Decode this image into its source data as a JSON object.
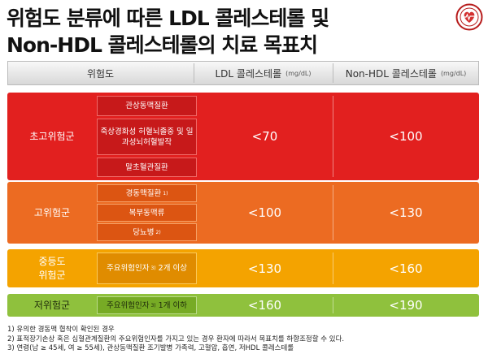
{
  "title_line1": "위험도 분류에 따른 LDL 콜레스테롤 및",
  "title_line2": "Non-HDL 콜레스테롤의 치료 목표치",
  "header": {
    "risk": "위험도",
    "ldl": "LDL 콜레스테롤",
    "ldl_unit": "(mg/dL)",
    "nonhdl": "Non-HDL 콜레스테롤",
    "nonhdl_unit": "(mg/dL)"
  },
  "groups": [
    {
      "category": "초고위험군",
      "ldl": "<70",
      "nonhdl": "<100",
      "conditions": [
        {
          "text": "관상동맥질환",
          "note": ""
        },
        {
          "text": "죽상경화성 허혈뇌졸중 및 일과성뇌허혈발작",
          "note": ""
        },
        {
          "text": "말초혈관질환",
          "note": ""
        }
      ]
    },
    {
      "category": "고위험군",
      "ldl": "<100",
      "nonhdl": "<130",
      "conditions": [
        {
          "text": "경동맥질환",
          "note": "1)"
        },
        {
          "text": "복부동맥류",
          "note": ""
        },
        {
          "text": "당뇨병",
          "note": "2)"
        }
      ]
    },
    {
      "category": "중등도 위험군",
      "ldl": "<130",
      "nonhdl": "<160",
      "conditions": [
        {
          "text": "주요위험인자",
          "note": "3)",
          "suffix": "2개 이상"
        }
      ]
    },
    {
      "category": "저위험군",
      "ldl": "<160",
      "nonhdl": "<190",
      "conditions": [
        {
          "text": "주요위험인자",
          "note": "3)",
          "suffix": "1개 이하"
        }
      ]
    }
  ],
  "footnotes": [
    "1) 유의한 경동맥 협착이 확인된 경우",
    "2) 표적장기손상 혹은 심혈관계질환의 주요위험인자를 가지고 있는 경우 환자에 따라서 목표치를 하향조정할 수 있다.",
    "3) 연령(남 ≥ 45세, 여 ≥ 55세), 관상동맥질환 조기발병 가족력, 고혈압, 흡연, 저HDL 콜레스테롤"
  ],
  "colors": {
    "very_high": "#e2201f",
    "high": "#ec6b22",
    "moderate": "#f4a300",
    "low": "#8fc13d"
  },
  "icons": {
    "logo": "society-emblem-icon"
  }
}
